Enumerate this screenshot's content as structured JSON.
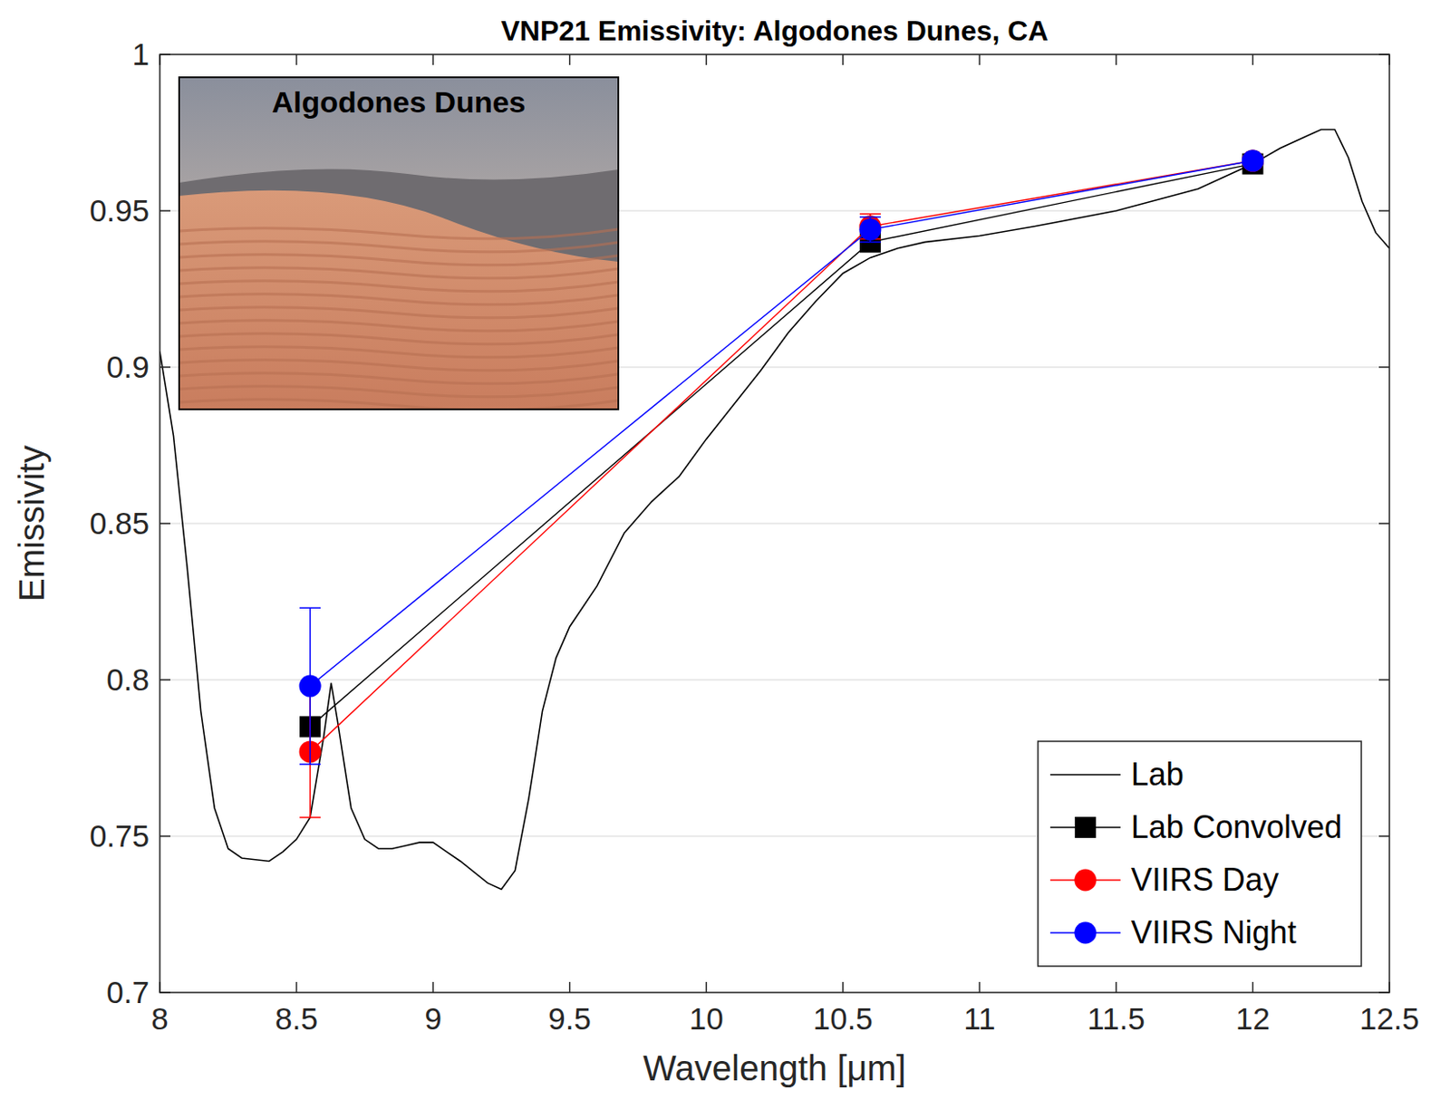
{
  "chart_data": {
    "type": "line",
    "title": "VNP21 Emissivity: Algodones Dunes, CA",
    "x_label": "Wavelength [μm]",
    "y_label": "Emissivity",
    "xlim": [
      8,
      12.5
    ],
    "xticks": [
      8,
      8.5,
      9,
      9.5,
      10,
      10.5,
      11,
      11.5,
      12,
      12.5
    ],
    "ylim": [
      0.7,
      1
    ],
    "yticks": [
      0.7,
      0.75,
      0.8,
      0.85,
      0.9,
      0.95,
      1
    ],
    "grid": "y",
    "legend": "lower right",
    "annotations": [
      "Algodones Dunes"
    ],
    "series": [
      {
        "name": "Lab",
        "color": "#000000",
        "marker": "none",
        "line_style": "solid",
        "x": [
          8.0,
          8.05,
          8.1,
          8.15,
          8.2,
          8.25,
          8.3,
          8.4,
          8.45,
          8.5,
          8.55,
          8.6,
          8.627,
          8.65,
          8.7,
          8.75,
          8.8,
          8.85,
          8.9,
          8.95,
          9.0,
          9.05,
          9.1,
          9.2,
          9.25,
          9.3,
          9.35,
          9.4,
          9.45,
          9.5,
          9.6,
          9.7,
          9.8,
          9.9,
          10.0,
          10.1,
          10.2,
          10.3,
          10.4,
          10.5,
          10.6,
          10.7,
          10.8,
          11.0,
          11.2,
          11.5,
          11.8,
          12.0,
          12.1,
          12.2,
          12.25,
          12.3,
          12.35,
          12.4,
          12.45,
          12.5
        ],
        "values": [
          0.905,
          0.878,
          0.836,
          0.79,
          0.759,
          0.746,
          0.743,
          0.742,
          0.745,
          0.749,
          0.756,
          0.782,
          0.799,
          0.787,
          0.759,
          0.749,
          0.746,
          0.746,
          0.747,
          0.748,
          0.748,
          0.745,
          0.742,
          0.735,
          0.733,
          0.739,
          0.762,
          0.79,
          0.807,
          0.817,
          0.83,
          0.847,
          0.857,
          0.865,
          0.877,
          0.888,
          0.899,
          0.911,
          0.921,
          0.93,
          0.935,
          0.938,
          0.94,
          0.942,
          0.945,
          0.95,
          0.957,
          0.965,
          0.97,
          0.974,
          0.976,
          0.976,
          0.967,
          0.953,
          0.943,
          0.938
        ]
      },
      {
        "name": "Lab Convolved",
        "color": "#000000",
        "marker": "square",
        "line_style": "solid",
        "x": [
          8.55,
          10.6,
          12.0
        ],
        "values": [
          0.785,
          0.94,
          0.965
        ]
      },
      {
        "name": "VIIRS Day",
        "color": "#ff0000",
        "marker": "circle",
        "line_style": "solid",
        "x": [
          8.55,
          10.6,
          12.0
        ],
        "values": [
          0.777,
          0.945,
          0.966
        ],
        "errors": [
          0.021,
          0.004,
          0.001
        ]
      },
      {
        "name": "VIIRS Night",
        "color": "#0000ff",
        "marker": "circle",
        "line_style": "solid",
        "x": [
          8.55,
          10.6,
          12.0
        ],
        "values": [
          0.798,
          0.944,
          0.966
        ],
        "errors": [
          0.025,
          0.004,
          0.001
        ]
      }
    ]
  }
}
